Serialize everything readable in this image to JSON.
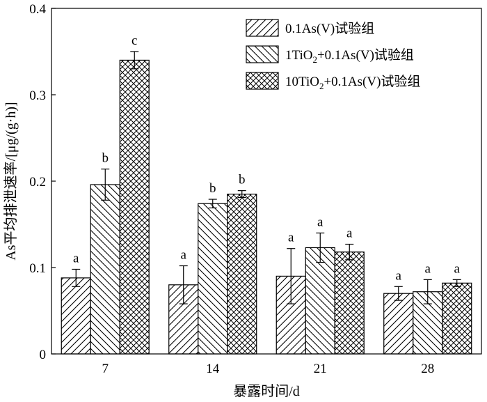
{
  "chart_data": {
    "type": "bar",
    "xlabel": "暴露时间/d",
    "ylabel": "As平均排泄速率/[μg/(g·h)]",
    "ylim": [
      0,
      0.4
    ],
    "yticks": [
      "0",
      "0.1",
      "0.2",
      "0.3",
      "0.4"
    ],
    "categories": [
      "7",
      "14",
      "21",
      "28"
    ],
    "legend_position": "top-right",
    "grid": false,
    "series": [
      {
        "name": "0.1As(V)试验组",
        "pattern": "diagonal-hatch",
        "values": [
          0.088,
          0.08,
          0.09,
          0.07
        ],
        "errors": [
          0.01,
          0.022,
          0.032,
          0.008
        ],
        "labels": [
          "a",
          "a",
          "a",
          "a"
        ]
      },
      {
        "name": "1TiO2+0.1As(V)试验组",
        "pattern": "back-diagonal-hatch",
        "values": [
          0.196,
          0.174,
          0.123,
          0.072
        ],
        "errors": [
          0.018,
          0.005,
          0.017,
          0.014
        ],
        "labels": [
          "b",
          "b",
          "a",
          "a"
        ]
      },
      {
        "name": "10TiO2+0.1As(V)试验组",
        "pattern": "cross-hatch",
        "values": [
          0.34,
          0.185,
          0.118,
          0.082
        ],
        "errors": [
          0.01,
          0.004,
          0.009,
          0.004
        ],
        "labels": [
          "c",
          "b",
          "a",
          "a"
        ]
      }
    ]
  }
}
